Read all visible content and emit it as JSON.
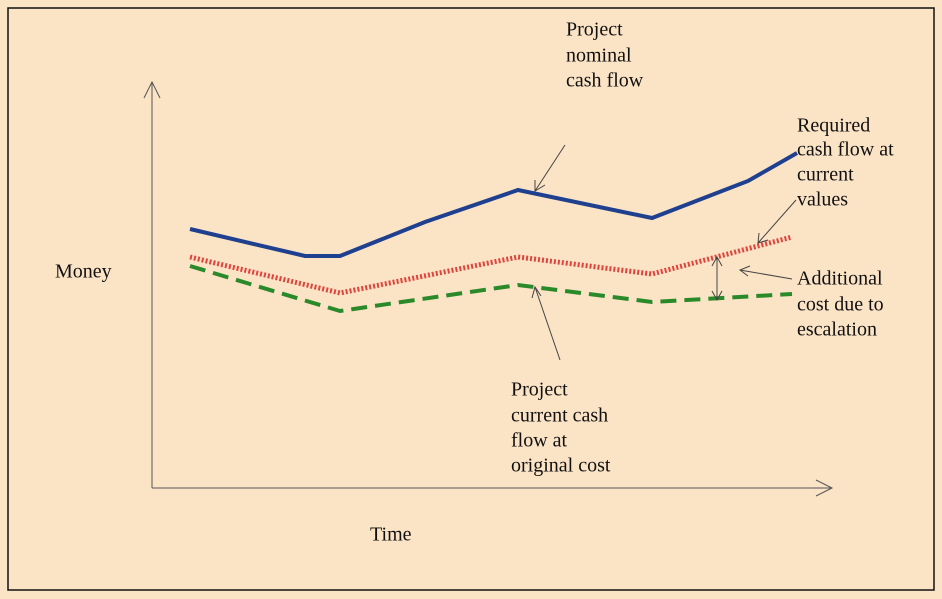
{
  "diagram": {
    "y_axis_label": "Money",
    "x_axis_label": "Time",
    "annotations": [
      {
        "lines": [
          "Project",
          "nominal",
          "cash flow"
        ]
      },
      {
        "lines": [
          "Required",
          "cash flow at",
          "current",
          "values"
        ]
      },
      {
        "lines": [
          "Additional",
          "cost due to",
          "escalation"
        ]
      },
      {
        "lines": [
          "Project",
          "current cash",
          "flow at",
          "original cost"
        ]
      }
    ]
  }
}
